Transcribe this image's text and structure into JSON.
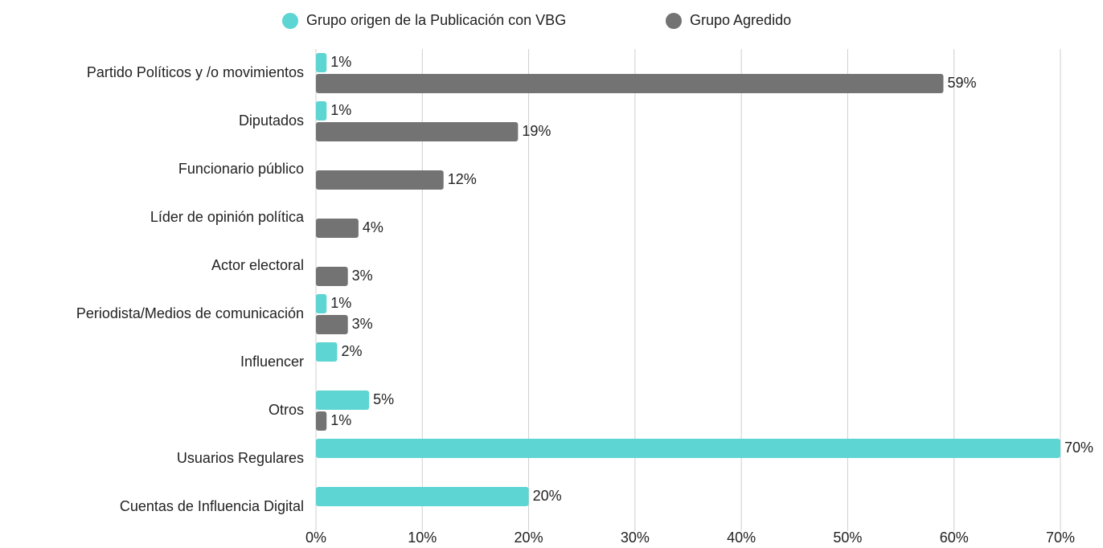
{
  "chart_data": {
    "type": "bar",
    "orientation": "horizontal",
    "categories": [
      "Partido Políticos y /o movimientos",
      "Diputados",
      "Funcionario público",
      "Líder de opinión política",
      "Actor electoral",
      "Periodista/Medios de comunicación",
      "Influencer",
      "Otros",
      "Usuarios Regulares",
      "Cuentas de Influencia Digital"
    ],
    "series": [
      {
        "name": "Grupo origen de la Publicación con VBG",
        "color": "#5dd5d3",
        "values": [
          1,
          1,
          null,
          null,
          null,
          1,
          2,
          5,
          70,
          20
        ],
        "value_labels": [
          "1%",
          "1%",
          null,
          null,
          null,
          "1%",
          "2%",
          "5%",
          "70%",
          "20%"
        ]
      },
      {
        "name": "Grupo Agredido",
        "color": "#737373",
        "values": [
          59,
          19,
          12,
          4,
          3,
          3,
          null,
          1,
          null,
          null
        ],
        "value_labels": [
          "59%",
          "19%",
          "12%",
          "4%",
          "3%",
          "3%",
          null,
          "1%",
          null,
          null
        ]
      }
    ],
    "xlim": [
      0,
      70
    ],
    "xticks": [
      {
        "value": 0,
        "label": "0%"
      },
      {
        "value": 10,
        "label": "10%"
      },
      {
        "value": 20,
        "label": "20%"
      },
      {
        "value": 30,
        "label": "30%"
      },
      {
        "value": 40,
        "label": "40%"
      },
      {
        "value": 50,
        "label": "50%"
      },
      {
        "value": 60,
        "label": "60%"
      },
      {
        "value": 70,
        "label": "70%"
      }
    ],
    "grid": true,
    "legend": "top"
  }
}
